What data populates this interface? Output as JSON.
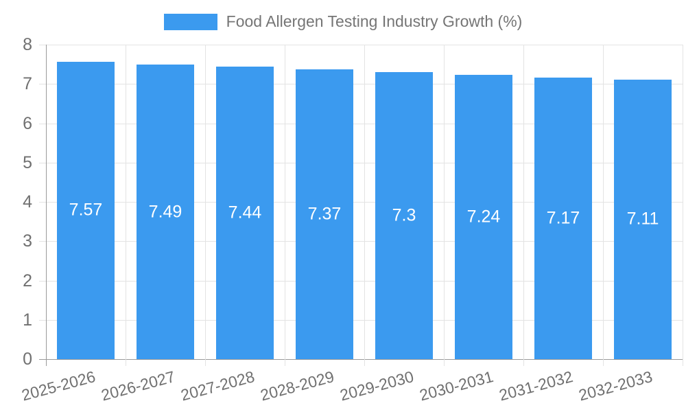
{
  "chart_data": {
    "type": "bar",
    "title": "Food Allergen Testing Industry Growth (%)",
    "categories": [
      "2025-2026",
      "2026-2027",
      "2027-2028",
      "2028-2029",
      "2029-2030",
      "2030-2031",
      "2031-2032",
      "2032-2033"
    ],
    "values": [
      7.57,
      7.49,
      7.44,
      7.37,
      7.3,
      7.24,
      7.17,
      7.11
    ],
    "value_labels": [
      "7.57",
      "7.49",
      "7.44",
      "7.37",
      "7.3",
      "7.24",
      "7.17",
      "7.11"
    ],
    "ylabel": "",
    "xlabel": "",
    "ylim": [
      0,
      8
    ],
    "ytick_step": 1,
    "ytick_labels": [
      "0",
      "1",
      "2",
      "3",
      "4",
      "5",
      "6",
      "7",
      "8"
    ],
    "grid": "on",
    "legend_position": "top",
    "x_label_rotation_deg": -15,
    "colors": {
      "bar": "#3B9AEF",
      "value_label": "#FFFFFF",
      "axis_text": "#707070",
      "title_text": "#757575",
      "grid_line": "#E3E3E3",
      "axis_line": "#9A9A9A",
      "background": "#FFFFFF"
    }
  }
}
